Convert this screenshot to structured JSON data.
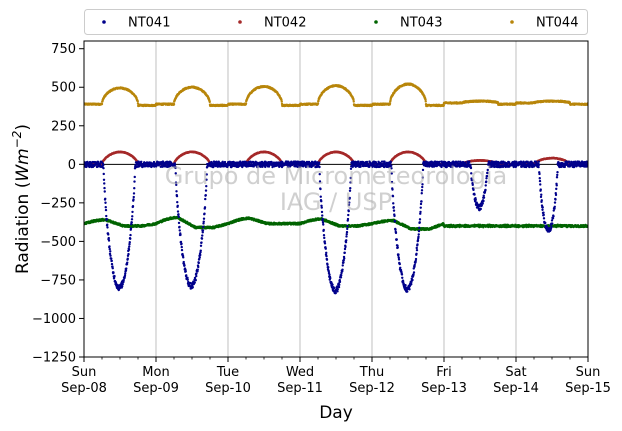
{
  "chart_data": {
    "type": "scatter",
    "xlabel": "Day",
    "ylabel_prefix": "Radiation (",
    "ylabel_unit": "Wm",
    "ylabel_exp": "−2",
    "ylabel_suffix": ")",
    "ylim": [
      -1250,
      800
    ],
    "yticks": [
      -1250,
      -1000,
      -750,
      -500,
      -250,
      0,
      250,
      500,
      750
    ],
    "ytick_labels": [
      "−1250",
      "−1000",
      "−750",
      "−500",
      "−250",
      "0",
      "250",
      "500",
      "750"
    ],
    "x_start": "2019-09-08 00:00",
    "x_end": "2019-09-15 00:00",
    "xticks": [
      {
        "day": "Sun",
        "date": "Sep-08"
      },
      {
        "day": "Mon",
        "date": "Sep-09"
      },
      {
        "day": "Tue",
        "date": "Sep-10"
      },
      {
        "day": "Wed",
        "date": "Sep-11"
      },
      {
        "day": "Thu",
        "date": "Sep-12"
      },
      {
        "day": "Fri",
        "date": "Sep-13"
      },
      {
        "day": "Sat",
        "date": "Sep-14"
      },
      {
        "day": "Sun",
        "date": "Sep-15"
      }
    ],
    "grid_x": true,
    "legend_position": "top, above plot",
    "watermark": [
      "Grupo de Micrometeorologia",
      "IAG / USP"
    ],
    "series": [
      {
        "name": "NT041",
        "color": "#00008b",
        "daily_min": [
          -800,
          -790,
          -830,
          -820,
          -810,
          -280,
          -430
        ],
        "daytime": [
          [
            0.27,
            0.71
          ],
          [
            1.27,
            1.71
          ],
          [
            2.27,
            1.71
          ],
          [
            3.27,
            3.71
          ],
          [
            4.27,
            4.71
          ],
          [
            5.37,
            5.61
          ],
          [
            6.32,
            6.58
          ]
        ],
        "night_value": 0
      },
      {
        "name": "NT042",
        "color": "#a52a2a",
        "daily_max": [
          80,
          80,
          80,
          80,
          80,
          25,
          40
        ],
        "night_value": 0
      },
      {
        "name": "NT043",
        "color": "#006400",
        "base_value": -385,
        "daily_peak": [
          -360,
          -345,
          -350,
          -355,
          -365,
          -395,
          -395
        ],
        "daily_trough": [
          -400,
          -410,
          -385,
          -400,
          -420,
          -400,
          -400
        ]
      },
      {
        "name": "NT044",
        "color": "#b8860b",
        "night_value": 390,
        "daily_max": [
          495,
          500,
          505,
          510,
          520,
          410,
          410
        ]
      }
    ]
  }
}
